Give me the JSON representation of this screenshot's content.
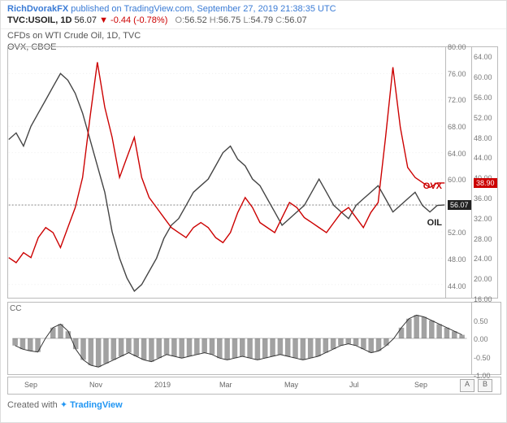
{
  "header": {
    "author": "RichDvorakFX",
    "published_on": "published on TradingView.com, September 27, 2019 21:38:35 UTC",
    "symbol": "TVC:USOIL, 1D",
    "last": "56.07",
    "change": "▼ -0.44 (-0.78%)",
    "open_label": "O:",
    "open": "56.52",
    "high_label": "H:",
    "high": "56.75",
    "low_label": "L:",
    "low": "54.79",
    "close_label": "C:",
    "close": "56.07"
  },
  "subtitle1": "CFDs on WTI Crude Oil, 1D, TVC",
  "subtitle2": "OVX, CBOE",
  "chart": {
    "oil": {
      "color": "#444444",
      "stroke_width": 1.4,
      "ymin": 42,
      "ymax": 80,
      "points": [
        66,
        67,
        65,
        68,
        70,
        72,
        74,
        76,
        75,
        73,
        70,
        66,
        62,
        58,
        52,
        48,
        45,
        43,
        44,
        46,
        48,
        51,
        53,
        54,
        56,
        58,
        59,
        60,
        62,
        64,
        65,
        63,
        62,
        60,
        59,
        57,
        55,
        53,
        54,
        55,
        56,
        58,
        60,
        58,
        56,
        55,
        54,
        56,
        57,
        58,
        59,
        57,
        55,
        56,
        57,
        58,
        56,
        55,
        56,
        56.07
      ],
      "badge": "56.07",
      "label": "OIL"
    },
    "ovx": {
      "color": "#cc0000",
      "stroke_width": 1.4,
      "ymin": 16,
      "ymax": 66,
      "points": [
        24,
        23,
        25,
        24,
        28,
        30,
        29,
        26,
        30,
        34,
        40,
        52,
        63,
        54,
        48,
        40,
        44,
        48,
        40,
        36,
        34,
        32,
        30,
        29,
        28,
        30,
        31,
        30,
        28,
        27,
        29,
        33,
        36,
        34,
        31,
        30,
        29,
        32,
        35,
        34,
        32,
        31,
        30,
        29,
        31,
        33,
        34,
        32,
        30,
        33,
        35,
        48,
        62,
        50,
        42,
        40,
        39,
        38,
        38.9,
        38.9
      ],
      "badge": "38.90",
      "label": "OVX"
    },
    "left_axis": {
      "min": 44,
      "max": 80,
      "step": 4
    },
    "right_axis": {
      "min": 16,
      "max": 64,
      "step": 4
    },
    "x_labels": [
      "Sep",
      "Nov",
      "2019",
      "Mar",
      "May",
      "Jul",
      "Sep"
    ]
  },
  "cc_panel": {
    "label": "CC",
    "color": "#555555",
    "ymin": -1.0,
    "ymax": 1.0,
    "ticks": [
      "0.50",
      "0.00",
      "-0.50",
      "-1.00"
    ],
    "values": [
      -0.2,
      -0.3,
      -0.35,
      -0.38,
      0.0,
      0.3,
      0.4,
      0.2,
      -0.3,
      -0.6,
      -0.75,
      -0.8,
      -0.7,
      -0.6,
      -0.5,
      -0.4,
      -0.5,
      -0.6,
      -0.65,
      -0.55,
      -0.45,
      -0.5,
      -0.55,
      -0.5,
      -0.45,
      -0.4,
      -0.45,
      -0.55,
      -0.6,
      -0.55,
      -0.5,
      -0.55,
      -0.6,
      -0.55,
      -0.5,
      -0.45,
      -0.5,
      -0.55,
      -0.6,
      -0.55,
      -0.5,
      -0.4,
      -0.3,
      -0.2,
      -0.15,
      -0.2,
      -0.3,
      -0.4,
      -0.35,
      -0.2,
      0.0,
      0.3,
      0.55,
      0.65,
      0.6,
      0.5,
      0.4,
      0.3,
      0.2,
      0.1
    ]
  },
  "ab_buttons": {
    "a": "A",
    "b": "B"
  },
  "footer": {
    "created": "Created with ",
    "brand": "TradingView"
  }
}
